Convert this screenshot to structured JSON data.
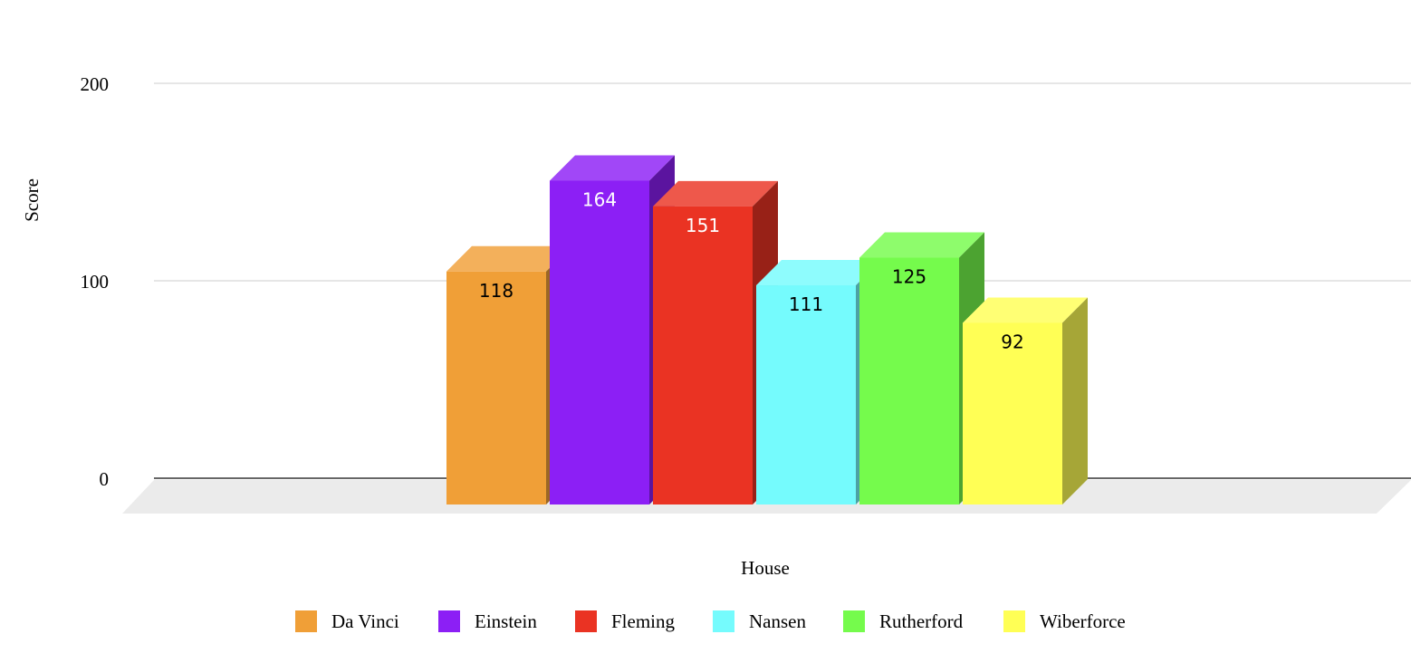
{
  "chart_data": {
    "type": "bar",
    "style": "3d",
    "title": "",
    "xlabel": "House",
    "ylabel": "Score",
    "ylim": [
      0,
      200
    ],
    "yticks": [
      0,
      100,
      200
    ],
    "grid": true,
    "legend_position": "bottom",
    "series": [
      {
        "name": "Da Vinci",
        "value": 118,
        "color": "#f09f37",
        "label_color": "#000000"
      },
      {
        "name": "Einstein",
        "value": 164,
        "color": "#8c1ff5",
        "label_color": "#ffffff"
      },
      {
        "name": "Fleming",
        "value": 151,
        "color": "#ea3323",
        "label_color": "#ffffff"
      },
      {
        "name": "Nansen",
        "value": 111,
        "color": "#75fbfd",
        "label_color": "#000000"
      },
      {
        "name": "Rutherford",
        "value": 125,
        "color": "#75fb4c",
        "label_color": "#000000"
      },
      {
        "name": "Wiberforce",
        "value": 92,
        "color": "#ffff55",
        "label_color": "#000000"
      }
    ]
  }
}
